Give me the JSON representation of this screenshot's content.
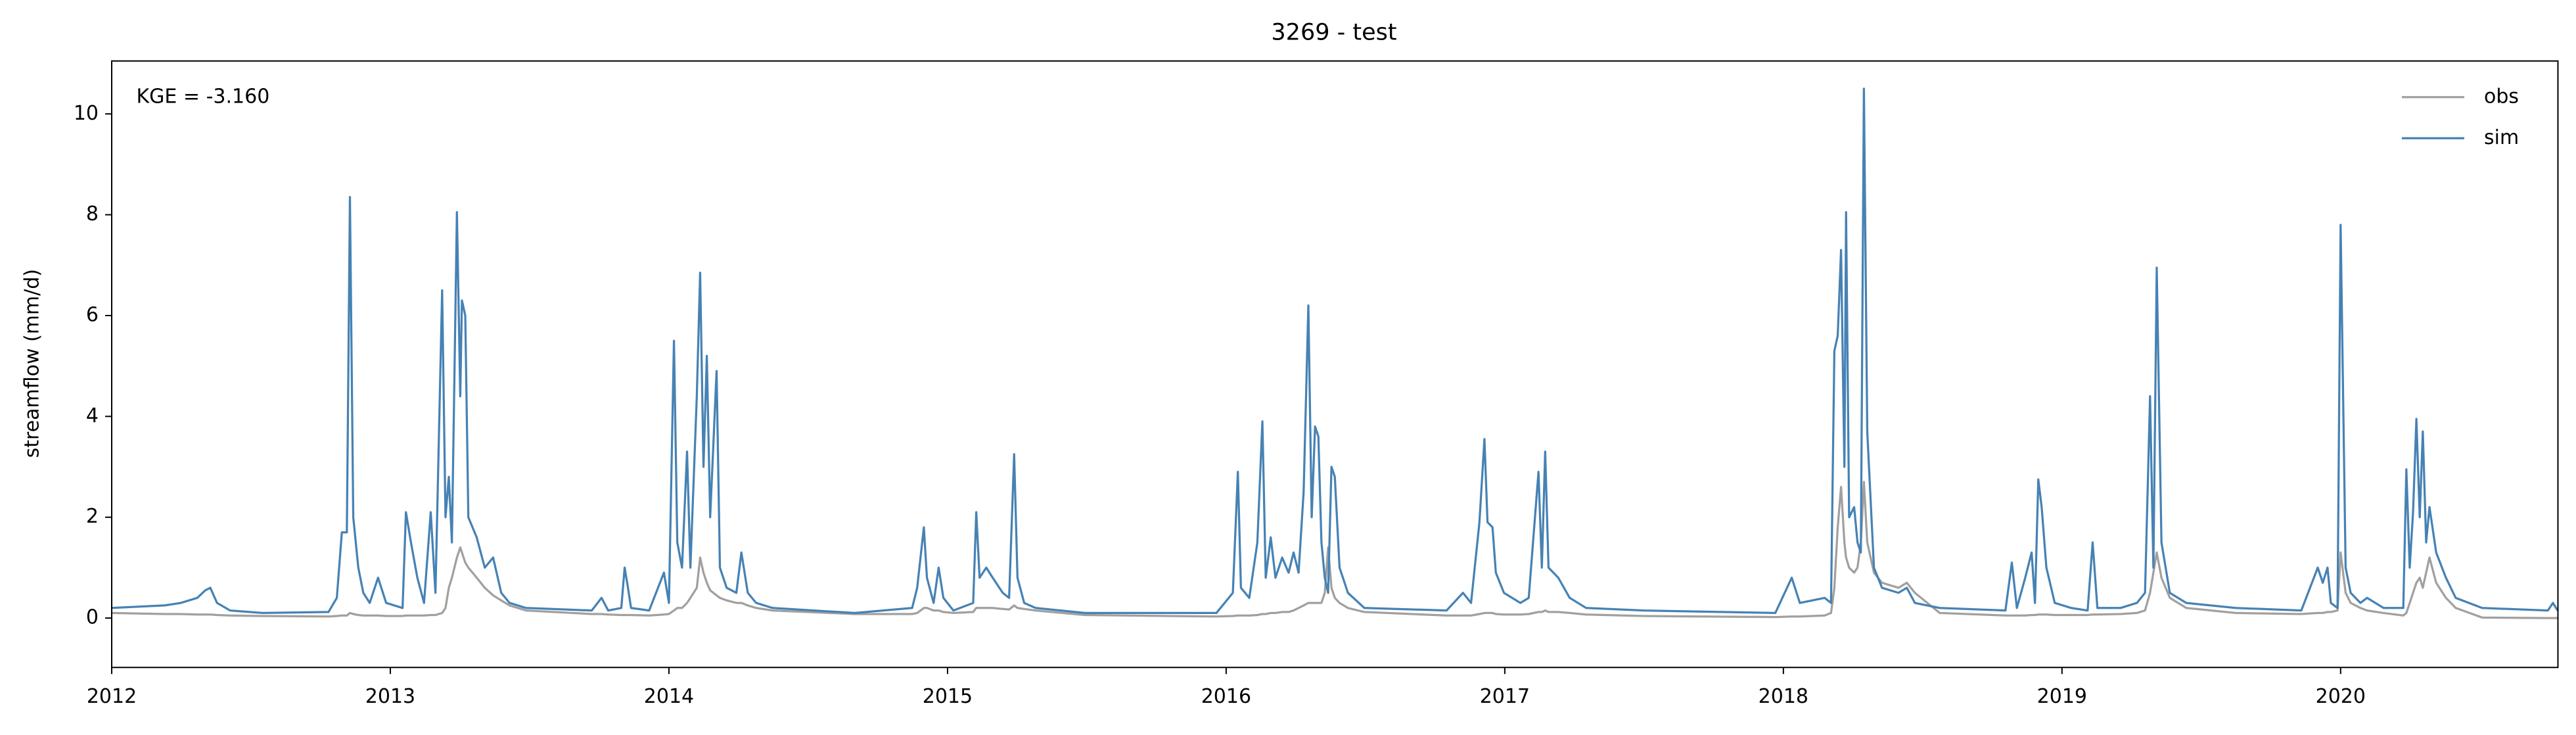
{
  "chart_data": {
    "type": "line",
    "title": "3269 - test",
    "ylabel": "streamflow (mm/d)",
    "annotation": "KGE = -3.160",
    "legend": "upper right",
    "grid": false,
    "xlim": [
      2012,
      2020.78
    ],
    "xticks": [
      2012,
      2013,
      2014,
      2015,
      2016,
      2017,
      2018,
      2019,
      2020
    ],
    "ylim": [
      -0.98,
      11.05
    ],
    "yticks": [
      0,
      2,
      4,
      6,
      8,
      10
    ],
    "x": [
      2012,
      2012.189,
      2012.248,
      2012.307,
      2012.336,
      2012.354,
      2012.378,
      2012.425,
      2012.542,
      2012.778,
      2012.808,
      2012.826,
      2012.844,
      2012.855,
      2012.867,
      2012.885,
      2012.903,
      2012.926,
      2012.956,
      2012.985,
      2013.044,
      2013.056,
      2013.074,
      2013.097,
      2013.121,
      2013.145,
      2013.162,
      2013.186,
      2013.198,
      2013.21,
      2013.221,
      2013.239,
      2013.251,
      2013.257,
      2013.269,
      2013.28,
      2013.31,
      2013.339,
      2013.369,
      2013.398,
      2013.428,
      2013.487,
      2013.723,
      2013.758,
      2013.782,
      2013.829,
      2013.841,
      2013.853,
      2013.864,
      2013.929,
      2013.982,
      2014,
      2014.018,
      2014.03,
      2014.047,
      2014.065,
      2014.077,
      2014.1,
      2014.112,
      2014.124,
      2014.136,
      2014.148,
      2014.171,
      2014.183,
      2014.207,
      2014.242,
      2014.26,
      2014.283,
      2014.313,
      2014.372,
      2014.667,
      2014.873,
      2014.891,
      2014.915,
      2014.926,
      2014.95,
      2014.968,
      2014.985,
      2015.021,
      2015.092,
      2015.103,
      2015.115,
      2015.139,
      2015.162,
      2015.198,
      2015.221,
      2015.239,
      2015.251,
      2015.275,
      2015.316,
      2015.493,
      2015.965,
      2016.024,
      2016.042,
      2016.053,
      2016.083,
      2016.112,
      2016.13,
      2016.142,
      2016.16,
      2016.177,
      2016.201,
      2016.224,
      2016.242,
      2016.26,
      2016.278,
      2016.295,
      2016.307,
      2016.319,
      2016.331,
      2016.342,
      2016.354,
      2016.366,
      2016.378,
      2016.39,
      2016.407,
      2016.437,
      2016.496,
      2016.791,
      2016.85,
      2016.879,
      2016.909,
      2016.927,
      2016.938,
      2016.956,
      2016.968,
      2016.997,
      2017.056,
      2017.086,
      2017.121,
      2017.133,
      2017.145,
      2017.157,
      2017.192,
      2017.233,
      2017.292,
      2017.499,
      2017.971,
      2018.03,
      2018.059,
      2018.148,
      2018.171,
      2018.183,
      2018.195,
      2018.207,
      2018.219,
      2018.225,
      2018.236,
      2018.254,
      2018.266,
      2018.278,
      2018.289,
      2018.301,
      2018.325,
      2018.354,
      2018.413,
      2018.443,
      2018.472,
      2018.561,
      2018.797,
      2018.82,
      2018.838,
      2018.868,
      2018.891,
      2018.903,
      2018.915,
      2018.927,
      2018.944,
      2018.974,
      2019.033,
      2019.092,
      2019.11,
      2019.127,
      2019.21,
      2019.269,
      2019.298,
      2019.316,
      2019.328,
      2019.34,
      2019.357,
      2019.387,
      2019.446,
      2019.623,
      2019.859,
      2019.918,
      2019.936,
      2019.953,
      2019.965,
      2019.989,
      2020,
      2020.018,
      2020.036,
      2020.071,
      2020.095,
      2020.154,
      2020.225,
      2020.236,
      2020.248,
      2020.26,
      2020.272,
      2020.284,
      2020.295,
      2020.307,
      2020.319,
      2020.343,
      2020.378,
      2020.413,
      2020.508,
      2020.744,
      2020.762,
      2020.779
    ],
    "series": [
      {
        "name": "obs",
        "color": "#a0a0a0",
        "values": [
          0.1,
          0.08,
          0.08,
          0.07,
          0.07,
          0.07,
          0.06,
          0.05,
          0.04,
          0.03,
          0.04,
          0.05,
          0.05,
          0.1,
          0.08,
          0.06,
          0.05,
          0.05,
          0.05,
          0.04,
          0.04,
          0.05,
          0.05,
          0.05,
          0.05,
          0.06,
          0.06,
          0.1,
          0.2,
          0.6,
          0.8,
          1.2,
          1.4,
          1.3,
          1.1,
          1,
          0.8,
          0.6,
          0.45,
          0.35,
          0.25,
          0.15,
          0.08,
          0.08,
          0.07,
          0.06,
          0.06,
          0.06,
          0.06,
          0.05,
          0.07,
          0.08,
          0.15,
          0.2,
          0.2,
          0.3,
          0.4,
          0.6,
          1.2,
          0.9,
          0.7,
          0.55,
          0.45,
          0.4,
          0.35,
          0.3,
          0.3,
          0.25,
          0.2,
          0.15,
          0.08,
          0.08,
          0.1,
          0.2,
          0.2,
          0.15,
          0.15,
          0.12,
          0.1,
          0.12,
          0.2,
          0.2,
          0.2,
          0.2,
          0.18,
          0.17,
          0.25,
          0.2,
          0.18,
          0.15,
          0.06,
          0.03,
          0.04,
          0.05,
          0.05,
          0.05,
          0.06,
          0.08,
          0.08,
          0.1,
          0.1,
          0.12,
          0.12,
          0.15,
          0.2,
          0.25,
          0.3,
          0.3,
          0.3,
          0.3,
          0.3,
          0.5,
          1.4,
          0.6,
          0.4,
          0.3,
          0.2,
          0.12,
          0.05,
          0.05,
          0.05,
          0.08,
          0.1,
          0.1,
          0.1,
          0.08,
          0.07,
          0.07,
          0.08,
          0.12,
          0.12,
          0.15,
          0.12,
          0.12,
          0.1,
          0.07,
          0.04,
          0.02,
          0.03,
          0.03,
          0.05,
          0.1,
          0.6,
          1.8,
          2.6,
          1.5,
          1.2,
          1,
          0.9,
          1,
          1.5,
          2.7,
          1.5,
          0.9,
          0.7,
          0.6,
          0.7,
          0.5,
          0.1,
          0.05,
          0.05,
          0.05,
          0.05,
          0.06,
          0.06,
          0.07,
          0.07,
          0.07,
          0.06,
          0.06,
          0.06,
          0.07,
          0.07,
          0.08,
          0.1,
          0.15,
          0.5,
          0.9,
          1.3,
          0.8,
          0.4,
          0.2,
          0.1,
          0.08,
          0.1,
          0.1,
          0.12,
          0.12,
          0.15,
          1.3,
          0.5,
          0.3,
          0.2,
          0.15,
          0.1,
          0.05,
          0.1,
          0.3,
          0.5,
          0.7,
          0.8,
          0.6,
          0.9,
          1.2,
          0.7,
          0.4,
          0.2,
          0.01,
          0,
          0,
          0
        ]
      },
      {
        "name": "sim",
        "color": "#4682b4",
        "values": [
          0.2,
          0.25,
          0.3,
          0.4,
          0.55,
          0.6,
          0.3,
          0.15,
          0.1,
          0.12,
          0.4,
          1.7,
          1.7,
          8.35,
          2,
          1,
          0.5,
          0.3,
          0.8,
          0.3,
          0.2,
          2.1,
          1.5,
          0.8,
          0.3,
          2.1,
          0.5,
          6.5,
          2,
          2.8,
          1.5,
          8.05,
          4.4,
          6.3,
          6,
          2,
          1.6,
          1,
          1.2,
          0.5,
          0.3,
          0.2,
          0.15,
          0.4,
          0.15,
          0.2,
          1,
          0.6,
          0.2,
          0.15,
          0.9,
          0.3,
          5.5,
          1.5,
          1,
          3.3,
          1,
          4.4,
          6.85,
          3,
          5.2,
          2,
          4.9,
          1,
          0.6,
          0.5,
          1.3,
          0.5,
          0.3,
          0.2,
          0.1,
          0.2,
          0.6,
          1.8,
          0.8,
          0.3,
          1,
          0.4,
          0.15,
          0.3,
          2.1,
          0.8,
          1,
          0.8,
          0.5,
          0.4,
          3.25,
          0.8,
          0.3,
          0.2,
          0.1,
          0.1,
          0.5,
          2.9,
          0.6,
          0.4,
          1.5,
          3.9,
          0.8,
          1.6,
          0.8,
          1.2,
          0.9,
          1.3,
          0.9,
          2.5,
          6.2,
          2,
          3.8,
          3.6,
          1.5,
          0.8,
          0.5,
          3,
          2.8,
          1,
          0.5,
          0.2,
          0.15,
          0.5,
          0.3,
          1.9,
          3.55,
          1.9,
          1.8,
          0.9,
          0.5,
          0.3,
          0.4,
          2.9,
          1,
          3.3,
          1,
          0.8,
          0.4,
          0.2,
          0.15,
          0.1,
          0.8,
          0.3,
          0.4,
          0.3,
          5.3,
          5.6,
          7.3,
          3,
          8.05,
          2,
          2.2,
          1.5,
          1.3,
          10.5,
          3.7,
          1,
          0.6,
          0.5,
          0.6,
          0.3,
          0.2,
          0.15,
          1.1,
          0.2,
          0.8,
          1.3,
          0.3,
          2.75,
          2.2,
          1,
          0.3,
          0.2,
          0.15,
          1.5,
          0.2,
          0.2,
          0.3,
          0.5,
          4.4,
          1,
          6.95,
          1.5,
          0.5,
          0.3,
          0.2,
          0.15,
          1,
          0.7,
          1,
          0.3,
          0.2,
          7.8,
          1,
          0.5,
          0.3,
          0.4,
          0.2,
          0.2,
          2.95,
          1,
          2.1,
          3.95,
          2,
          3.7,
          1.5,
          2.2,
          1.3,
          0.8,
          0.4,
          0.2,
          0.15,
          0.3,
          0.15
        ]
      }
    ]
  }
}
